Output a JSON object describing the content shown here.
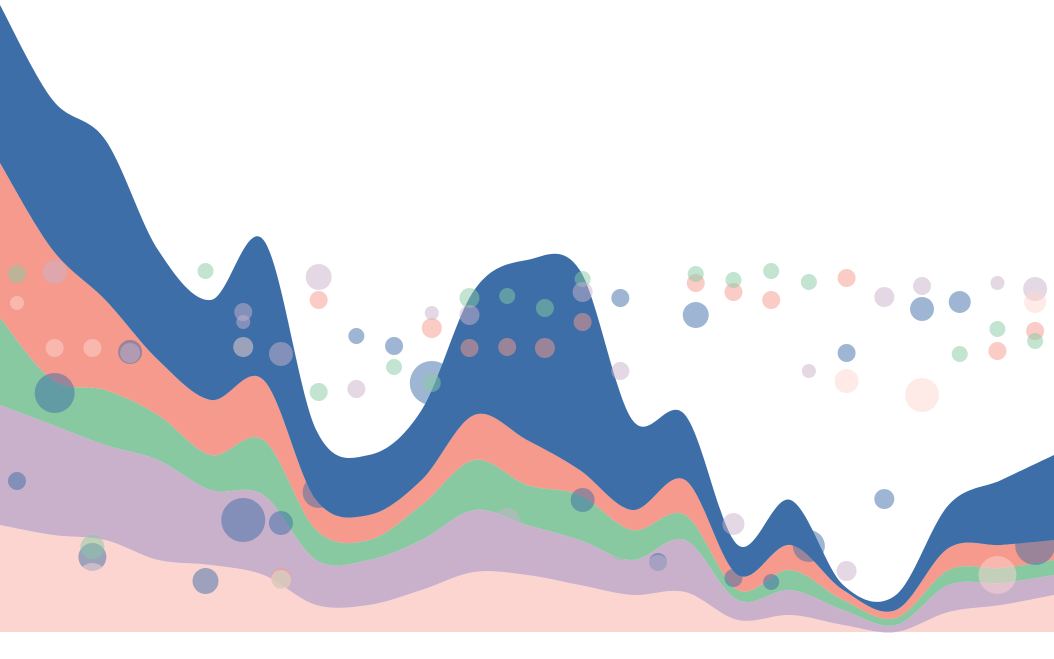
{
  "chart_data": [
    {
      "type": "area",
      "stacked": true,
      "x": [
        0,
        1,
        2,
        3,
        4,
        5,
        6,
        7,
        8,
        9,
        10,
        11,
        12,
        13,
        14,
        15,
        16,
        17,
        18,
        19,
        20
      ],
      "xlim": [
        0,
        20
      ],
      "ylim": [
        0,
        632
      ],
      "series": [
        {
          "color": "#fdd5d0",
          "values": [
            107,
            97,
            92,
            72,
            67,
            57,
            27,
            27,
            42,
            60,
            57,
            47,
            37,
            40,
            12,
            17,
            7,
            0,
            20,
            27,
            37
          ]
        },
        {
          "color": "#c9b1cb",
          "values": [
            120,
            110,
            95,
            100,
            75,
            80,
            45,
            45,
            50,
            62,
            50,
            45,
            35,
            52,
            20,
            25,
            15,
            7,
            27,
            22,
            20
          ]
        },
        {
          "color": "#88c9a2",
          "values": [
            87,
            45,
            55,
            45,
            35,
            55,
            30,
            20,
            35,
            50,
            40,
            45,
            30,
            25,
            10,
            20,
            10,
            7,
            15,
            15,
            15
          ]
        },
        {
          "color": "#f59a8c",
          "values": [
            155,
            130,
            90,
            55,
            55,
            60,
            30,
            25,
            25,
            45,
            45,
            25,
            20,
            35,
            15,
            25,
            10,
            8,
            22,
            23,
            20
          ]
        },
        {
          "color": "#3d6ea8",
          "values": [
            158,
            150,
            160,
            110,
            100,
            140,
            70,
            60,
            70,
            125,
            180,
            200,
            90,
            65,
            30,
            45,
            5,
            15,
            43,
            65,
            85
          ]
        }
      ]
    },
    {
      "type": "scatter",
      "xlim": [
        -0.45,
        27.5
      ],
      "ylim": [
        0,
        632
      ],
      "opacity": 0.5,
      "series": [
        {
          "color": "#3d6ea8",
          "x": [
            0,
            1,
            2,
            3,
            4,
            5,
            6,
            7,
            8,
            9,
            10,
            11,
            12,
            13,
            14,
            14,
            15,
            16,
            17,
            18,
            19,
            20,
            21,
            22,
            23,
            24,
            25,
            26,
            27
          ],
          "y": [
            151,
            239,
            75,
            280,
            314,
            51,
            112,
            109,
            140,
            296,
            286,
            249,
            294,
            318,
            302,
            259,
            132,
            334,
            70,
            317,
            54,
            50,
            86,
            279,
            133,
            323,
            330,
            112,
            87
          ],
          "size": [
            9,
            20,
            14,
            12,
            22,
            13,
            22,
            12,
            16,
            8,
            9,
            22,
            16,
            19,
            15,
            9,
            12,
            9,
            9,
            13,
            9,
            8,
            16,
            9,
            10,
            12,
            11,
            20,
            20
          ]
        },
        {
          "color": "#f59a8c",
          "x": [
            0,
            1,
            7,
            8,
            11,
            12,
            13,
            14,
            15,
            18,
            19,
            20,
            22,
            26,
            27
          ],
          "y": [
            330,
            318,
            54,
            332,
            304,
            284,
            285,
            284,
            310,
            349,
            340,
            332,
            354,
            281,
            301
          ],
          "size": [
            8,
            8,
            10,
            9,
            10,
            9,
            9,
            10,
            9,
            9,
            9,
            9,
            9,
            9,
            9
          ]
        },
        {
          "color": "#88c9a2",
          "x": [
            0,
            2,
            5,
            7,
            8,
            10,
            11,
            12,
            13,
            14,
            15,
            16,
            18,
            19,
            20,
            21,
            25,
            26,
            27
          ],
          "y": [
            358,
            85,
            361,
            52,
            240,
            265,
            249,
            334,
            336,
            324,
            353,
            81,
            358,
            352,
            361,
            350,
            278,
            303,
            291
          ],
          "size": [
            9,
            12,
            8,
            9,
            9,
            8,
            9,
            10,
            8,
            9,
            8,
            9,
            8,
            8,
            8,
            8,
            8,
            8,
            8
          ]
        },
        {
          "color": "#c9b1cb",
          "x": [
            1,
            3,
            6,
            6,
            7,
            8,
            9,
            10,
            11,
            12,
            13,
            15,
            16,
            17,
            19,
            21,
            22,
            23,
            24,
            26,
            27
          ],
          "y": [
            360,
            279,
            320,
            310,
            278,
            355,
            243,
            61,
            319,
            317,
            111,
            340,
            261,
            66,
            108,
            261,
            61,
            335,
            346,
            349,
            343
          ],
          "size": [
            12,
            10,
            9,
            7,
            12,
            13,
            9,
            11,
            7,
            10,
            13,
            10,
            9,
            11,
            11,
            7,
            10,
            10,
            9,
            7,
            12
          ]
        },
        {
          "color": "#fdd5d0",
          "x": [
            0,
            1,
            2,
            2,
            6,
            7,
            22,
            24,
            26,
            27
          ],
          "y": [
            329,
            284,
            284,
            54,
            285,
            52,
            251,
            237,
            57,
            330
          ],
          "size": [
            7,
            9,
            9,
            15,
            10,
            10,
            12,
            17,
            19,
            11
          ]
        }
      ]
    }
  ]
}
